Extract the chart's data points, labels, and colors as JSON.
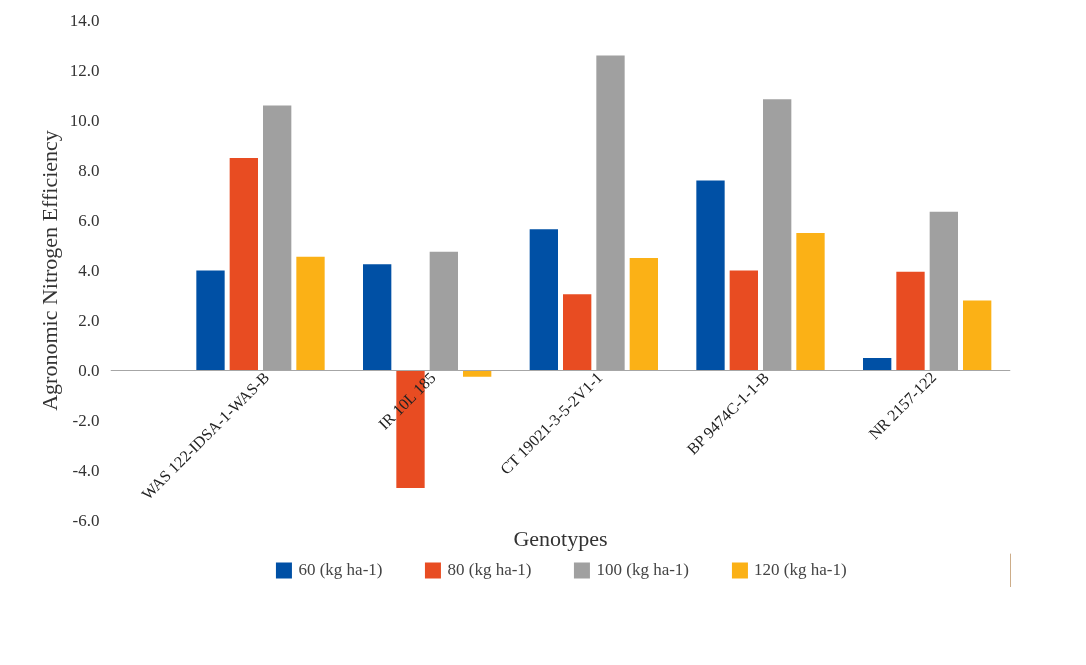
{
  "chart_data": {
    "type": "bar",
    "xlabel": "Genotypes",
    "ylabel": "Agronomic Nitrogen Efficiency",
    "categories": [
      "WAS 122-IDSA-1-WAS-B",
      "IR 10L 185",
      "CT 19021-3-5-2V1-1",
      "BP 9474C-1-1-B",
      "NR 2157-122"
    ],
    "series": [
      {
        "name": "60 (kg ha-1)",
        "color": "#0050a5",
        "values": [
          4.0,
          4.25,
          5.65,
          7.6,
          0.5
        ]
      },
      {
        "name": "80 (kg ha-1)",
        "color": "#e84c22",
        "values": [
          8.5,
          -4.7,
          3.05,
          4.0,
          3.95
        ]
      },
      {
        "name": "100 (kg ha-1)",
        "color": "#a0a0a0",
        "values": [
          10.6,
          4.75,
          12.6,
          10.85,
          6.35
        ]
      },
      {
        "name": "120 (kg ha-1)",
        "color": "#fbb116",
        "values": [
          4.55,
          -0.25,
          4.5,
          5.5,
          2.8
        ]
      }
    ],
    "ylim": [
      -6,
      14
    ],
    "yticks": [
      {
        "value": -6,
        "label": "-6.0"
      },
      {
        "value": -4,
        "label": "-4.0"
      },
      {
        "value": -2,
        "label": "-2.0"
      },
      {
        "value": 0,
        "label": "0.0"
      },
      {
        "value": 2,
        "label": "2.0"
      },
      {
        "value": 4,
        "label": "4.0"
      },
      {
        "value": 6,
        "label": "6.0"
      },
      {
        "value": 8,
        "label": "8.0"
      },
      {
        "value": 10,
        "label": "10.0"
      },
      {
        "value": 12,
        "label": "12.0"
      },
      {
        "value": 14,
        "label": "14.0"
      }
    ],
    "grid": false,
    "legend": "bottom"
  }
}
